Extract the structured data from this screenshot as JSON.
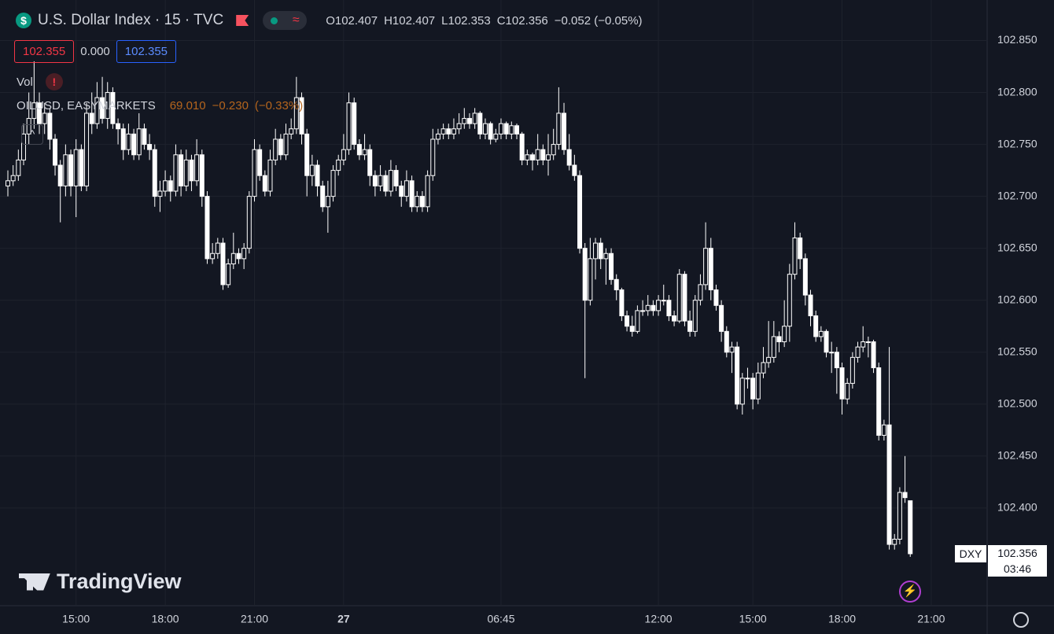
{
  "header": {
    "title": "U.S. Dollar Index · 15 · TVC",
    "ohlc": [
      "O102.407",
      "H102.407",
      "L102.353",
      "C102.356",
      "−0.052 (−0.05%)"
    ],
    "bid": "102.355",
    "spread": "0.000",
    "ask": "102.355",
    "vol": "Vol",
    "compare": {
      "name": "OILUSD, EASYMARKETS",
      "price": "69.010",
      "change": "−0.230",
      "percent": "(−0.33%)"
    }
  },
  "brand": "TradingView",
  "price_label": {
    "symbol": "DXY",
    "price": "102.356",
    "countdown": "03:46"
  },
  "chart_data": {
    "type": "candlestick",
    "grid": true,
    "bull_color": "#131722",
    "bear_color": "#ffffff",
    "wick_color": "#ffffff",
    "ylim": [
      102.306,
      102.889
    ],
    "yticks": [
      {
        "value": 102.4,
        "label": "102.400"
      },
      {
        "value": 102.45,
        "label": "102.450"
      },
      {
        "value": 102.5,
        "label": "102.500"
      },
      {
        "value": 102.55,
        "label": "102.550"
      },
      {
        "value": 102.6,
        "label": "102.600"
      },
      {
        "value": 102.65,
        "label": "102.650"
      },
      {
        "value": 102.7,
        "label": "102.700"
      },
      {
        "value": 102.75,
        "label": "102.750"
      },
      {
        "value": 102.8,
        "label": "102.800"
      },
      {
        "value": 102.85,
        "label": "102.850"
      }
    ],
    "categories": [
      null,
      null,
      null,
      null,
      null,
      null,
      null,
      null,
      null,
      null,
      null,
      null,
      null,
      "15:00",
      null,
      null,
      null,
      null,
      null,
      null,
      null,
      null,
      null,
      null,
      null,
      null,
      null,
      null,
      null,
      null,
      "18:00",
      null,
      null,
      null,
      null,
      null,
      null,
      null,
      null,
      null,
      null,
      null,
      null,
      null,
      null,
      null,
      null,
      "21:00",
      null,
      null,
      null,
      null,
      null,
      null,
      null,
      null,
      null,
      null,
      null,
      null,
      null,
      null,
      null,
      null,
      "27",
      null,
      null,
      null,
      null,
      null,
      null,
      null,
      null,
      null,
      null,
      null,
      null,
      null,
      null,
      null,
      null,
      null,
      null,
      null,
      null,
      null,
      null,
      null,
      null,
      null,
      null,
      null,
      null,
      null,
      "06:45",
      null,
      null,
      null,
      null,
      null,
      null,
      null,
      null,
      null,
      null,
      null,
      null,
      null,
      null,
      null,
      null,
      null,
      null,
      null,
      null,
      null,
      null,
      null,
      null,
      null,
      null,
      null,
      null,
      null,
      "12:00",
      null,
      null,
      null,
      null,
      null,
      null,
      null,
      null,
      null,
      null,
      null,
      null,
      null,
      null,
      null,
      null,
      null,
      "15:00",
      null,
      null,
      null,
      null,
      null,
      null,
      null,
      null,
      null,
      null,
      null,
      null,
      null,
      null,
      null,
      null,
      "18:00",
      null,
      null,
      null,
      null,
      null,
      null,
      null,
      null,
      null,
      null,
      null,
      null,
      null,
      null,
      null,
      null,
      "21:00"
    ],
    "candles": [
      [
        102.71,
        102.725,
        102.7,
        102.715
      ],
      [
        102.715,
        102.73,
        102.71,
        102.72
      ],
      [
        102.72,
        102.745,
        102.715,
        102.735
      ],
      [
        102.735,
        102.77,
        102.73,
        102.76
      ],
      [
        102.76,
        102.8,
        102.75,
        102.775
      ],
      [
        102.775,
        102.83,
        102.765,
        102.79
      ],
      [
        102.79,
        102.8,
        102.76,
        102.77
      ],
      [
        102.77,
        102.79,
        102.76,
        102.78
      ],
      [
        102.78,
        102.785,
        102.745,
        102.755
      ],
      [
        102.755,
        102.76,
        102.72,
        102.73
      ],
      [
        102.73,
        102.735,
        102.675,
        102.71
      ],
      [
        102.71,
        102.75,
        102.7,
        102.74
      ],
      [
        102.74,
        102.745,
        102.7,
        102.71
      ],
      [
        102.71,
        102.755,
        102.68,
        102.745
      ],
      [
        102.745,
        102.75,
        102.705,
        102.71
      ],
      [
        102.71,
        102.79,
        102.705,
        102.78
      ],
      [
        102.78,
        102.8,
        102.76,
        102.77
      ],
      [
        102.77,
        102.81,
        102.765,
        102.795
      ],
      [
        102.795,
        102.815,
        102.77,
        102.775
      ],
      [
        102.775,
        102.81,
        102.765,
        102.8
      ],
      [
        102.8,
        102.805,
        102.765,
        102.77
      ],
      [
        102.77,
        102.775,
        102.75,
        102.765
      ],
      [
        102.765,
        102.77,
        102.735,
        102.745
      ],
      [
        102.745,
        102.77,
        102.74,
        102.76
      ],
      [
        102.76,
        102.765,
        102.735,
        102.74
      ],
      [
        102.74,
        102.78,
        102.735,
        102.765
      ],
      [
        102.765,
        102.77,
        102.745,
        102.75
      ],
      [
        102.75,
        102.76,
        102.735,
        102.745
      ],
      [
        102.745,
        102.75,
        102.69,
        102.7
      ],
      [
        102.7,
        102.715,
        102.685,
        102.705
      ],
      [
        102.705,
        102.725,
        102.7,
        102.715
      ],
      [
        102.715,
        102.72,
        102.695,
        102.705
      ],
      [
        102.705,
        102.75,
        102.7,
        102.74
      ],
      [
        102.74,
        102.745,
        102.7,
        102.71
      ],
      [
        102.71,
        102.745,
        102.705,
        102.735
      ],
      [
        102.735,
        102.74,
        102.705,
        102.715
      ],
      [
        102.715,
        102.755,
        102.71,
        102.74
      ],
      [
        102.74,
        102.745,
        102.69,
        102.7
      ],
      [
        102.7,
        102.705,
        102.635,
        102.64
      ],
      [
        102.64,
        102.655,
        102.635,
        102.645
      ],
      [
        102.645,
        102.66,
        102.64,
        102.655
      ],
      [
        102.655,
        102.66,
        102.61,
        102.615
      ],
      [
        102.615,
        102.64,
        102.612,
        102.635
      ],
      [
        102.635,
        102.665,
        102.63,
        102.645
      ],
      [
        102.645,
        102.65,
        102.635,
        102.64
      ],
      [
        102.64,
        102.655,
        102.63,
        102.65
      ],
      [
        102.65,
        102.705,
        102.645,
        102.7
      ],
      [
        102.7,
        102.755,
        102.695,
        102.745
      ],
      [
        102.745,
        102.75,
        102.715,
        102.72
      ],
      [
        102.72,
        102.725,
        102.7,
        102.705
      ],
      [
        102.705,
        102.745,
        102.7,
        102.735
      ],
      [
        102.735,
        102.765,
        102.73,
        102.755
      ],
      [
        102.755,
        102.76,
        102.735,
        102.74
      ],
      [
        102.74,
        102.77,
        102.735,
        102.76
      ],
      [
        102.76,
        102.775,
        102.755,
        102.765
      ],
      [
        102.765,
        102.815,
        102.76,
        102.795
      ],
      [
        102.795,
        102.8,
        102.75,
        102.76
      ],
      [
        102.76,
        102.765,
        102.7,
        102.72
      ],
      [
        102.72,
        102.74,
        102.71,
        102.73
      ],
      [
        102.73,
        102.735,
        102.7,
        102.71
      ],
      [
        102.71,
        102.715,
        102.685,
        102.69
      ],
      [
        102.69,
        102.715,
        102.665,
        102.7
      ],
      [
        102.7,
        102.73,
        102.695,
        102.725
      ],
      [
        102.725,
        102.74,
        102.72,
        102.735
      ],
      [
        102.735,
        102.76,
        102.73,
        102.745
      ],
      [
        102.745,
        102.8,
        102.74,
        102.79
      ],
      [
        102.79,
        102.795,
        102.745,
        102.75
      ],
      [
        102.75,
        102.755,
        102.735,
        102.74
      ],
      [
        102.74,
        102.76,
        102.735,
        102.745
      ],
      [
        102.745,
        102.75,
        102.71,
        102.72
      ],
      [
        102.72,
        102.725,
        102.7,
        102.71
      ],
      [
        102.71,
        102.73,
        102.705,
        102.72
      ],
      [
        102.72,
        102.725,
        102.7,
        102.705
      ],
      [
        102.705,
        102.735,
        102.7,
        102.725
      ],
      [
        102.725,
        102.73,
        102.705,
        102.71
      ],
      [
        102.71,
        102.715,
        102.69,
        102.7
      ],
      [
        102.7,
        102.725,
        102.695,
        102.715
      ],
      [
        102.715,
        102.72,
        102.685,
        102.69
      ],
      [
        102.69,
        102.705,
        102.685,
        102.7
      ],
      [
        102.7,
        102.705,
        102.685,
        102.69
      ],
      [
        102.69,
        102.725,
        102.685,
        102.72
      ],
      [
        102.72,
        102.765,
        102.715,
        102.755
      ],
      [
        102.755,
        102.765,
        102.75,
        102.76
      ],
      [
        102.76,
        102.77,
        102.755,
        102.765
      ],
      [
        102.765,
        102.77,
        102.755,
        102.76
      ],
      [
        102.76,
        102.775,
        102.755,
        102.765
      ],
      [
        102.765,
        102.78,
        102.76,
        102.77
      ],
      [
        102.77,
        102.785,
        102.765,
        102.775
      ],
      [
        102.775,
        102.78,
        102.765,
        102.77
      ],
      [
        102.77,
        102.785,
        102.765,
        102.78
      ],
      [
        102.78,
        102.782,
        102.755,
        102.76
      ],
      [
        102.76,
        102.775,
        102.755,
        102.77
      ],
      [
        102.77,
        102.772,
        102.75,
        102.755
      ],
      [
        102.755,
        102.765,
        102.752,
        102.76
      ],
      [
        102.76,
        102.775,
        102.755,
        102.77
      ],
      [
        102.77,
        102.772,
        102.755,
        102.76
      ],
      [
        102.76,
        102.772,
        102.755,
        102.768
      ],
      [
        102.768,
        102.77,
        102.755,
        102.76
      ],
      [
        102.76,
        102.762,
        102.73,
        102.735
      ],
      [
        102.735,
        102.745,
        102.73,
        102.74
      ],
      [
        102.74,
        102.742,
        102.725,
        102.735
      ],
      [
        102.735,
        102.76,
        102.73,
        102.745
      ],
      [
        102.745,
        102.75,
        102.73,
        102.735
      ],
      [
        102.735,
        102.76,
        102.72,
        102.74
      ],
      [
        102.74,
        102.765,
        102.735,
        102.75
      ],
      [
        102.75,
        102.805,
        102.745,
        102.78
      ],
      [
        102.78,
        102.79,
        102.74,
        102.745
      ],
      [
        102.745,
        102.76,
        102.725,
        102.73
      ],
      [
        102.73,
        102.74,
        102.715,
        102.72
      ],
      [
        102.72,
        102.725,
        102.645,
        102.65
      ],
      [
        102.65,
        102.655,
        102.525,
        102.6
      ],
      [
        102.6,
        102.66,
        102.595,
        102.64
      ],
      [
        102.64,
        102.66,
        102.62,
        102.655
      ],
      [
        102.655,
        102.66,
        102.63,
        102.64
      ],
      [
        102.64,
        102.65,
        102.615,
        102.645
      ],
      [
        102.645,
        102.65,
        102.615,
        102.62
      ],
      [
        102.62,
        102.625,
        102.6,
        102.61
      ],
      [
        102.61,
        102.612,
        102.58,
        102.585
      ],
      [
        102.585,
        102.59,
        102.57,
        102.575
      ],
      [
        102.575,
        102.585,
        102.565,
        102.57
      ],
      [
        102.57,
        102.595,
        102.568,
        102.59
      ],
      [
        102.59,
        102.6,
        102.585,
        102.59
      ],
      [
        102.59,
        102.605,
        102.585,
        102.595
      ],
      [
        102.595,
        102.6,
        102.585,
        102.59
      ],
      [
        102.59,
        102.605,
        102.585,
        102.6
      ],
      [
        102.6,
        102.615,
        102.595,
        102.6
      ],
      [
        102.6,
        102.605,
        102.58,
        102.585
      ],
      [
        102.585,
        102.59,
        102.575,
        102.58
      ],
      [
        102.58,
        102.63,
        102.578,
        102.625
      ],
      [
        102.625,
        102.628,
        102.575,
        102.58
      ],
      [
        102.58,
        102.59,
        102.565,
        102.57
      ],
      [
        102.57,
        102.605,
        102.565,
        102.6
      ],
      [
        102.6,
        102.625,
        102.595,
        102.615
      ],
      [
        102.615,
        102.675,
        102.61,
        102.65
      ],
      [
        102.65,
        102.66,
        102.6,
        102.61
      ],
      [
        102.61,
        102.615,
        102.59,
        102.595
      ],
      [
        102.595,
        102.6,
        102.56,
        102.57
      ],
      [
        102.57,
        102.575,
        102.545,
        102.55
      ],
      [
        102.55,
        102.56,
        102.53,
        102.555
      ],
      [
        102.555,
        102.56,
        102.495,
        102.5
      ],
      [
        102.5,
        102.53,
        102.49,
        102.525
      ],
      [
        102.525,
        102.535,
        102.515,
        102.525
      ],
      [
        102.525,
        102.53,
        102.495,
        102.505
      ],
      [
        102.505,
        102.54,
        102.5,
        102.53
      ],
      [
        102.53,
        102.555,
        102.525,
        102.54
      ],
      [
        102.54,
        102.58,
        102.535,
        102.545
      ],
      [
        102.545,
        102.58,
        102.54,
        102.565
      ],
      [
        102.565,
        102.57,
        102.55,
        102.56
      ],
      [
        102.56,
        102.6,
        102.555,
        102.575
      ],
      [
        102.575,
        102.635,
        102.56,
        102.625
      ],
      [
        102.625,
        102.675,
        102.62,
        102.66
      ],
      [
        102.66,
        102.665,
        102.63,
        102.64
      ],
      [
        102.64,
        102.645,
        102.595,
        102.605
      ],
      [
        102.605,
        102.61,
        102.575,
        102.585
      ],
      [
        102.585,
        102.59,
        102.56,
        102.565
      ],
      [
        102.565,
        102.575,
        102.56,
        102.57
      ],
      [
        102.57,
        102.572,
        102.545,
        102.55
      ],
      [
        102.55,
        102.56,
        102.53,
        102.55
      ],
      [
        102.55,
        102.555,
        102.51,
        102.535
      ],
      [
        102.535,
        102.54,
        102.49,
        102.505
      ],
      [
        102.505,
        102.525,
        102.5,
        102.52
      ],
      [
        102.52,
        102.55,
        102.515,
        102.545
      ],
      [
        102.545,
        102.56,
        102.54,
        102.555
      ],
      [
        102.555,
        102.575,
        102.55,
        102.56
      ],
      [
        102.56,
        102.565,
        102.545,
        102.56
      ],
      [
        102.56,
        102.562,
        102.53,
        102.535
      ],
      [
        102.535,
        102.54,
        102.465,
        102.47
      ],
      [
        102.47,
        102.485,
        102.465,
        102.48
      ],
      [
        102.48,
        102.555,
        102.36,
        102.365
      ],
      [
        102.365,
        102.375,
        102.36,
        102.37
      ],
      [
        102.37,
        102.42,
        102.365,
        102.415
      ],
      [
        102.415,
        102.45,
        102.405,
        102.41
      ],
      [
        102.407,
        102.407,
        102.353,
        102.356
      ],
      null,
      null,
      null,
      null
    ]
  }
}
